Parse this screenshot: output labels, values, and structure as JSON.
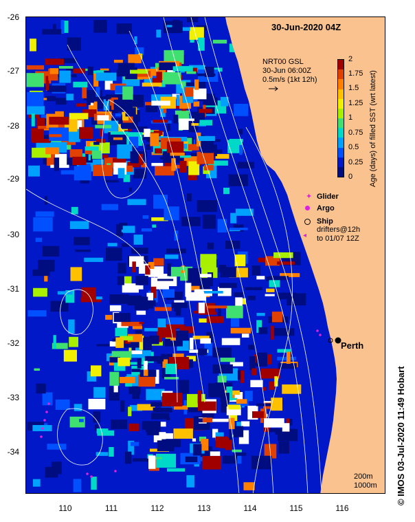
{
  "title": "30-Jun-2020 04Z",
  "current_info": {
    "line1": "NRT00 GSL",
    "line2": "30-Jun 06:00Z",
    "line3": "0.5m/s (1kt 12h)"
  },
  "colorbar": {
    "label": "Age (days) of filled SST (wrt latest)",
    "ticks": [
      "2",
      "1.75",
      "1.5",
      "1.25",
      "1",
      "0.75",
      "0.5",
      "0.25",
      "0"
    ],
    "range": [
      0,
      2
    ],
    "colors": [
      "#000d80",
      "#0018c8",
      "#0050ff",
      "#00a0ff",
      "#00d8c8",
      "#40e070",
      "#a8f000",
      "#f0f000",
      "#ffc000",
      "#ff8000",
      "#e04000",
      "#a00000"
    ]
  },
  "legend": {
    "glider": "Glider",
    "argo": "Argo",
    "ship": "Ship",
    "drifters_line1": "drifters@12h",
    "drifters_line2": "to 01/07 12Z",
    "glider_color": "#e020e0",
    "argo_color": "#e020e0"
  },
  "place": {
    "name": "Perth"
  },
  "y_axis": {
    "labels": [
      "-26",
      "-27",
      "-28",
      "-29",
      "-30",
      "-31",
      "-32",
      "-33",
      "-34"
    ]
  },
  "x_axis": {
    "labels": [
      "110",
      "111",
      "112",
      "113",
      "114",
      "115",
      "116"
    ]
  },
  "contours": {
    "line1": "200m",
    "line2": "1000m"
  },
  "footer": "IMOS 03-Jul-2020 11:49 Hobart",
  "copyright_symbol": "©",
  "colors": {
    "land": "#f9c28f",
    "contour": "#ffffff"
  }
}
